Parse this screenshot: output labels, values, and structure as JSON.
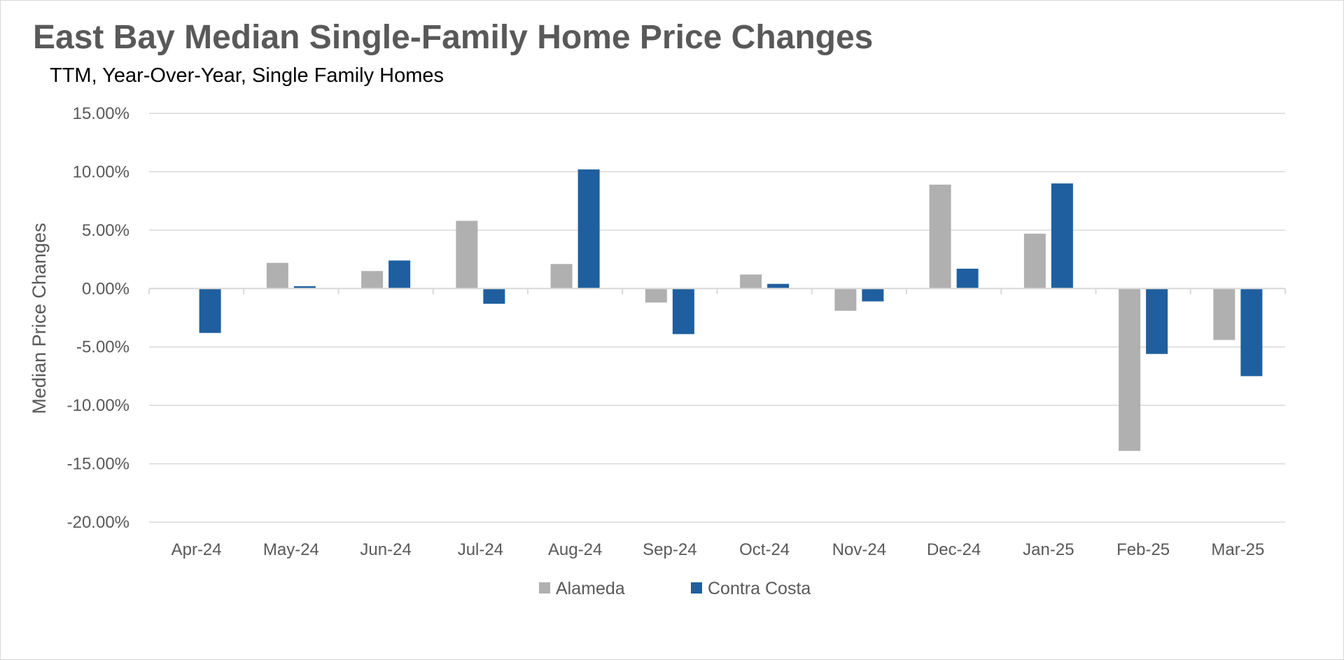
{
  "chart_data": {
    "type": "bar",
    "title": "East Bay Median Single-Family Home Price Changes",
    "subtitle": "TTM, Year-Over-Year, Single Family Homes",
    "xlabel": "",
    "ylabel": "Median Price Changes",
    "ylim": [
      -0.2,
      0.15
    ],
    "yticks": [
      0.15,
      0.1,
      0.05,
      0.0,
      -0.05,
      -0.1,
      -0.15,
      -0.2
    ],
    "ytick_labels": [
      "15.00%",
      "10.00%",
      "5.00%",
      "0.00%",
      "-5.00%",
      "-10.00%",
      "-15.00%",
      "-20.00%"
    ],
    "grid": true,
    "legend_position": "bottom",
    "categories": [
      "Apr-24",
      "May-24",
      "Jun-24",
      "Jul-24",
      "Aug-24",
      "Sep-24",
      "Oct-24",
      "Nov-24",
      "Dec-24",
      "Jan-25",
      "Feb-25",
      "Mar-25"
    ],
    "series": [
      {
        "name": "Alameda",
        "color": "#b0b0b0",
        "values": [
          0.0,
          0.022,
          0.015,
          0.058,
          0.021,
          -0.012,
          0.012,
          -0.019,
          0.089,
          0.047,
          -0.139,
          -0.044
        ]
      },
      {
        "name": "Contra Costa",
        "color": "#1f5f9f",
        "values": [
          -0.038,
          0.002,
          0.024,
          -0.013,
          0.102,
          -0.039,
          0.004,
          -0.011,
          0.017,
          0.09,
          -0.056,
          -0.075
        ]
      }
    ]
  }
}
